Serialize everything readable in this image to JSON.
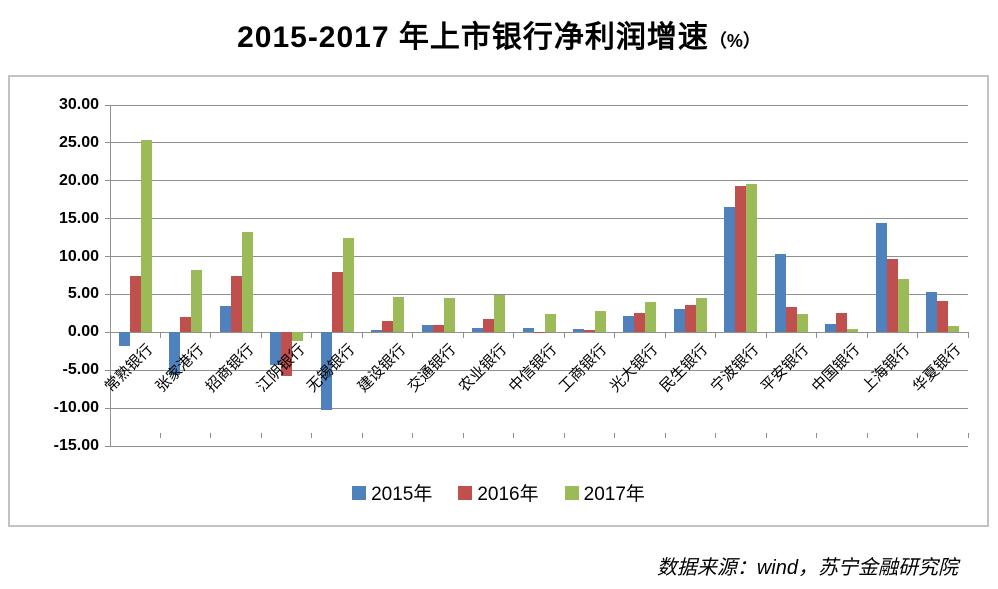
{
  "header": {
    "title": "2015-2017 年上市银行净利润增速",
    "title_suffix": "（%）"
  },
  "source": {
    "text": "数据来源：wind，苏宁金融研究院"
  },
  "chart_data": {
    "type": "bar",
    "title": "2015-2017 年上市银行净利润增速（%）",
    "categories": [
      "常熟银行",
      "张家港行",
      "招商银行",
      "江阴银行",
      "无锡银行",
      "建设银行",
      "交通银行",
      "农业银行",
      "中信银行",
      "工商银行",
      "光大银行",
      "民生银行",
      "宁波银行",
      "平安银行",
      "中国银行",
      "上海银行",
      "华夏银行"
    ],
    "series": [
      {
        "name": "2015年",
        "color": "#4F81BD",
        "values": [
          -1.8,
          -5.6,
          3.5,
          -4.3,
          -10.2,
          0.3,
          1.0,
          0.6,
          0.6,
          0.5,
          2.2,
          3.1,
          16.6,
          10.3,
          1.1,
          14.4,
          5.3
        ]
      },
      {
        "name": "2016年",
        "color": "#C0504D",
        "values": [
          7.4,
          2.0,
          7.4,
          -5.8,
          7.9,
          1.5,
          1.0,
          1.8,
          0.1,
          0.3,
          2.5,
          3.6,
          19.3,
          3.3,
          2.5,
          9.7,
          4.2
        ]
      },
      {
        "name": "2017年",
        "color": "#9BBB59",
        "values": [
          25.4,
          8.2,
          13.3,
          -1.2,
          12.4,
          4.7,
          4.5,
          4.9,
          2.4,
          2.8,
          4.0,
          4.5,
          19.6,
          2.4,
          0.4,
          7.0,
          0.9
        ]
      }
    ],
    "ylim": [
      -15,
      30
    ],
    "ytick_step": 5,
    "ytick_labels": [
      "30.00",
      "25.00",
      "20.00",
      "15.00",
      "10.00",
      "5.00",
      "0.00",
      "-5.00",
      "-10.00",
      "-15.00"
    ],
    "grid": true,
    "legend_position": "bottom-inside",
    "axis_color": "#8f8f8f",
    "xlabel": "",
    "ylabel": ""
  }
}
